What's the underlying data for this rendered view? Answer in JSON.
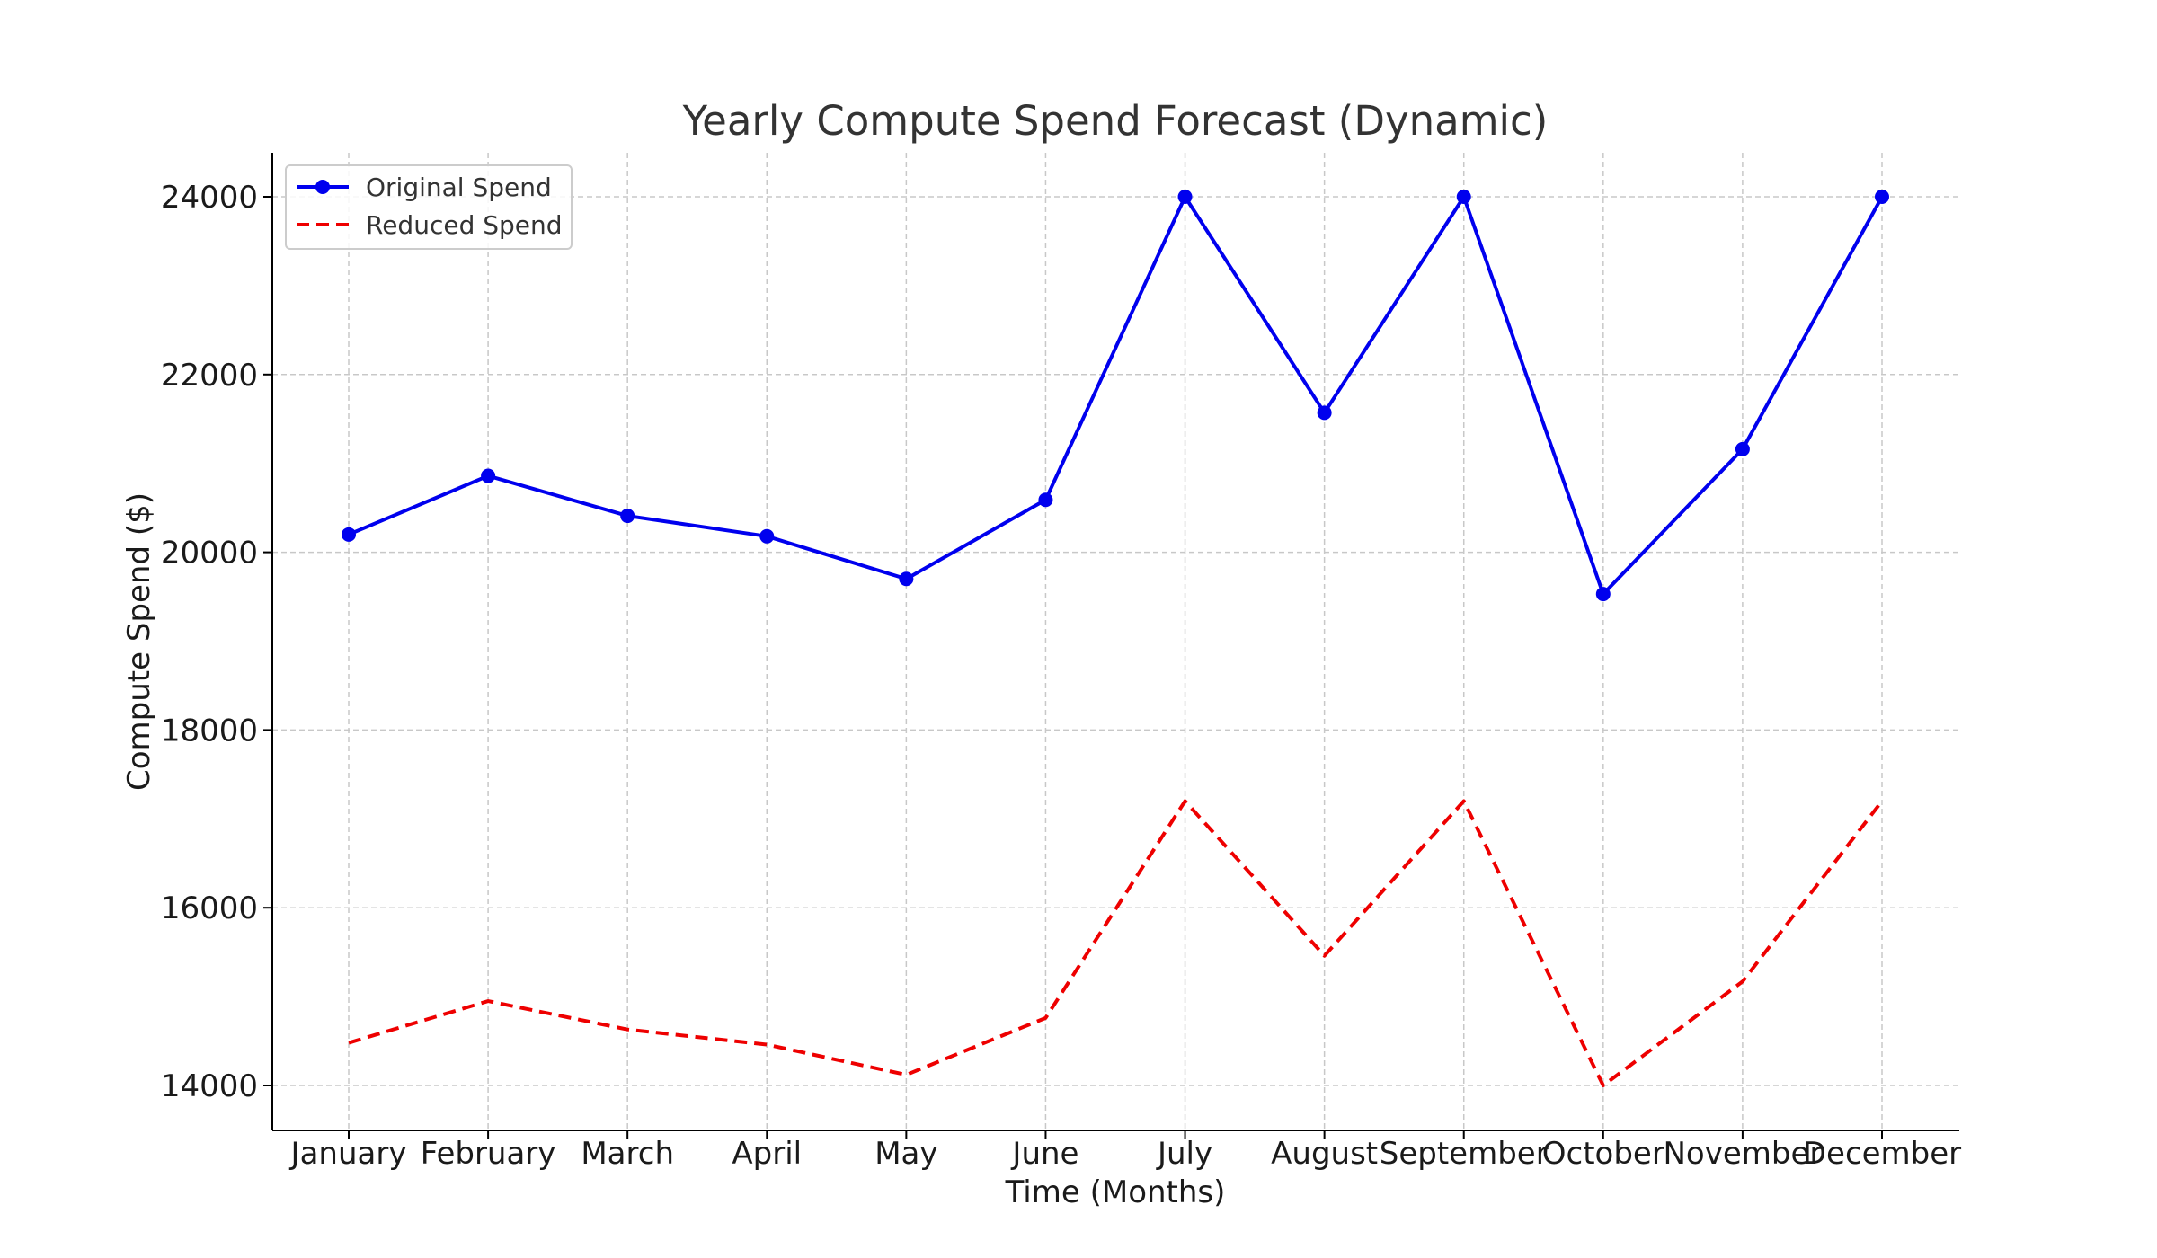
{
  "chart_data": {
    "type": "line",
    "title": "Yearly Compute Spend Forecast (Dynamic)",
    "xlabel": "Time (Months)",
    "ylabel": "Compute Spend ($)",
    "categories": [
      "January",
      "February",
      "March",
      "April",
      "May",
      "June",
      "July",
      "August",
      "September",
      "October",
      "November",
      "December"
    ],
    "ylim": [
      13500,
      24500
    ],
    "yticks": [
      14000,
      16000,
      18000,
      20000,
      22000,
      24000
    ],
    "grid": true,
    "legend_position": "top-left",
    "series": [
      {
        "name": "Original Spend",
        "color": "#0000ee",
        "style": "solid",
        "marker": "circle",
        "values": [
          20200,
          20860,
          20410,
          20180,
          19700,
          20590,
          24000,
          21570,
          24000,
          19530,
          21160,
          24000
        ]
      },
      {
        "name": "Reduced Spend",
        "color": "#ee0000",
        "style": "dashed",
        "marker": "none",
        "values": [
          14480,
          14950,
          14630,
          14460,
          14120,
          14760,
          17200,
          15460,
          17200,
          14000,
          15170,
          17200
        ]
      }
    ]
  }
}
